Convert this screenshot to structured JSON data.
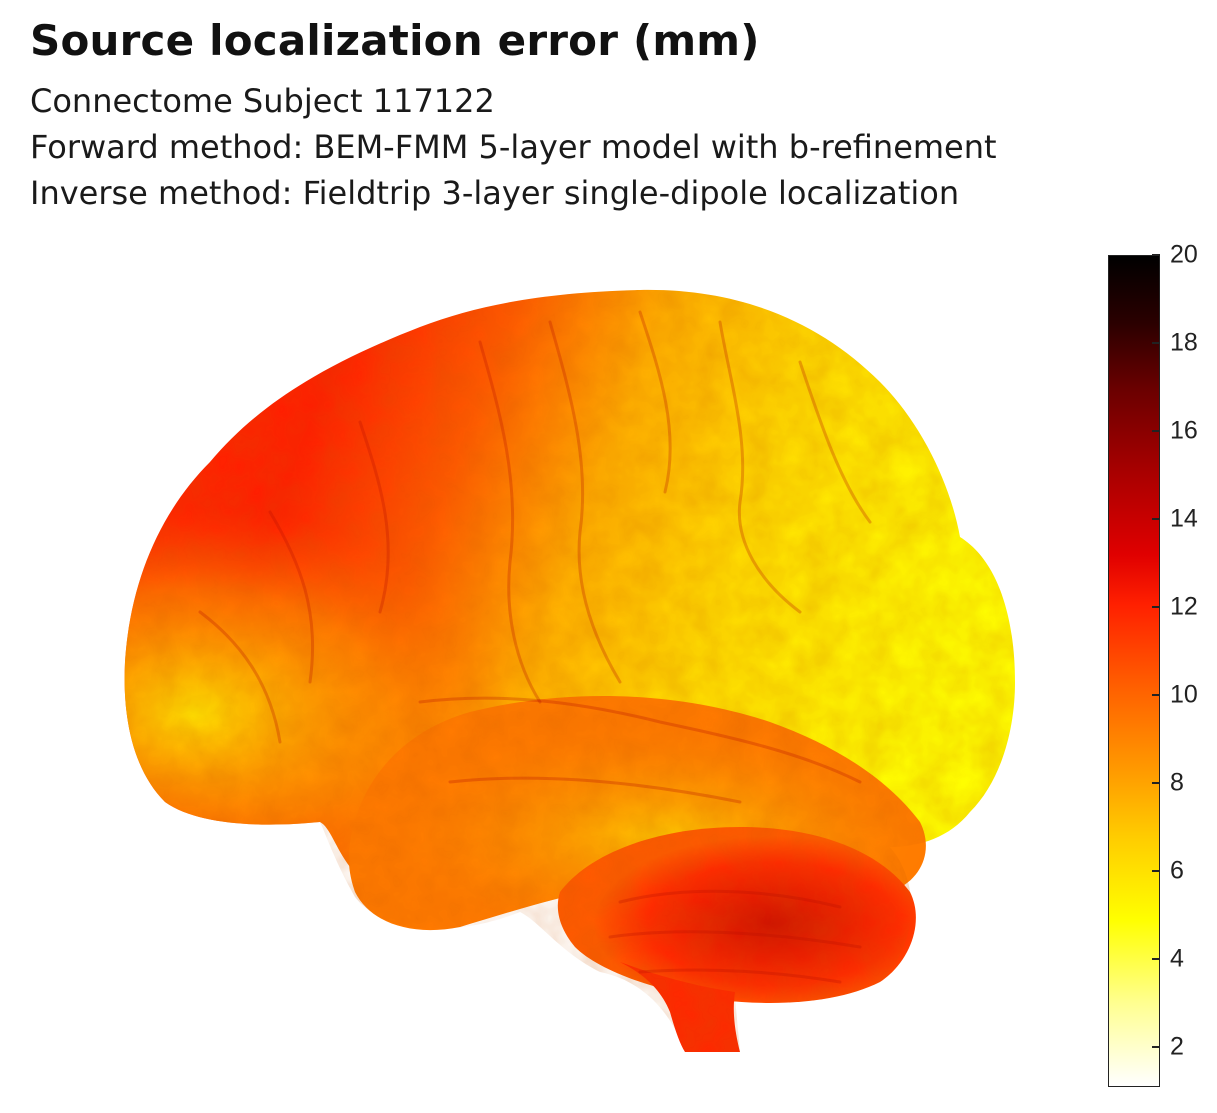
{
  "title": "Source localization error (mm)",
  "subtitles": [
    "Connectome Subject 117122",
    "Forward method: BEM-FMM 5-layer model with b-refinement",
    "Inverse method: Fieldtrip 3-layer single-dipole localization"
  ],
  "colorbar": {
    "ticks": [
      "20",
      "18",
      "16",
      "14",
      "12",
      "10",
      "8",
      "6",
      "4",
      "2"
    ],
    "colormap": "hot (reversed)",
    "range": [
      1,
      20
    ],
    "colors": {
      "low": "#ffffff",
      "mid_low": "#ffff00",
      "mid": "#ff8c00",
      "mid_high": "#ff1a00",
      "high": "#000000"
    }
  },
  "figure": {
    "icon": "brain-surface-render"
  }
}
